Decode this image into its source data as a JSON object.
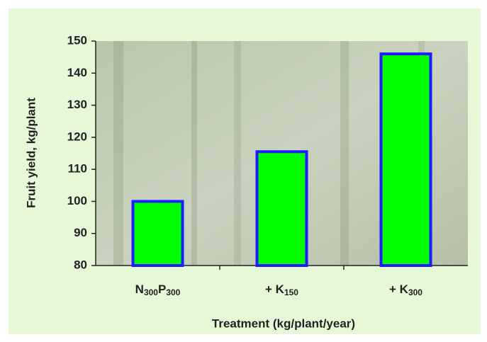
{
  "chart_data": {
    "type": "bar",
    "categories": [
      "N300P300",
      "+ K150",
      "+ K300"
    ],
    "values": [
      100,
      115.5,
      146
    ],
    "color": "#00ff00",
    "edge_color": "#1c1cff",
    "ylim": [
      80,
      150
    ],
    "yticks": [
      80,
      90,
      100,
      110,
      120,
      130,
      140,
      150
    ],
    "xlabel": "Treatment (kg/plant/year)",
    "ylabel": "Fruit yield, kg/plant"
  }
}
